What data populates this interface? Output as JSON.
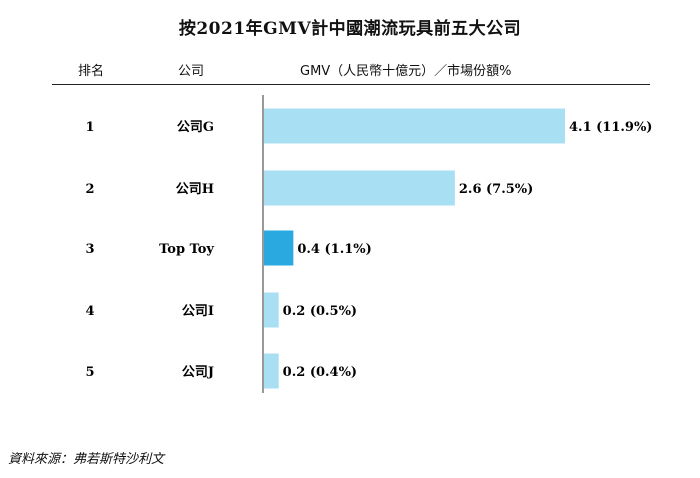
{
  "title": "按2021年GMV計中國潮流玩具前五大公司",
  "headers": {
    "rank": "排名",
    "company": "公司",
    "gmv": "GMV（人民幣十億元）／市場份額%"
  },
  "source": "資料來源：弗若斯特沙利文",
  "colors": {
    "bar": "#a8dff3",
    "highlight": "#29a9e0"
  },
  "chart_data": {
    "type": "bar",
    "orientation": "horizontal",
    "title": "按2021年GMV計中國潮流玩具前五大公司",
    "ylabel": "GMV（人民幣十億元）／市場份額%",
    "ranks": [
      "1",
      "2",
      "3",
      "4",
      "5"
    ],
    "categories": [
      "公司G",
      "公司H",
      "Top Toy",
      "公司I",
      "公司J"
    ],
    "values": [
      4.1,
      2.6,
      0.4,
      0.2,
      0.2
    ],
    "share_pct": [
      11.9,
      7.5,
      1.1,
      0.5,
      0.4
    ],
    "labels": [
      "4.1 (11.9%)",
      "2.6 (7.5%)",
      "0.4 (1.1%)",
      "0.2 (0.5%)",
      "0.2 (0.4%)"
    ],
    "highlight_category": "Top Toy",
    "xlim": [
      0,
      4.1
    ],
    "grid": false,
    "legend": "none"
  }
}
